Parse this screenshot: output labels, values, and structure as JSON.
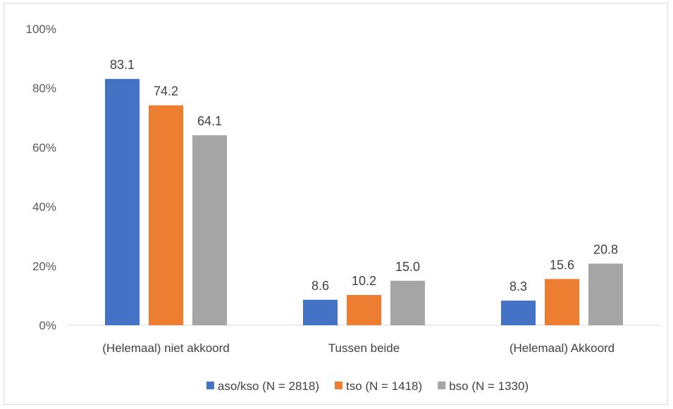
{
  "chart_data": {
    "type": "bar",
    "categories": [
      "(Helemaal) niet akkoord",
      "Tussen beide",
      "(Helemaal) Akkoord"
    ],
    "series": [
      {
        "name": "aso/kso (N = 2818)",
        "values": [
          83.1,
          8.6,
          8.3
        ],
        "color": "#4472c4"
      },
      {
        "name": "tso (N = 1418)",
        "values": [
          74.2,
          10.2,
          15.6
        ],
        "color": "#ed7d31"
      },
      {
        "name": "bso (N = 1330)",
        "values": [
          64.1,
          15.0,
          20.8
        ],
        "color": "#a5a5a5"
      }
    ],
    "ylim": [
      0,
      100
    ],
    "yticks": [
      0,
      20,
      40,
      60,
      80,
      100
    ],
    "ytick_labels": [
      "0%",
      "20%",
      "40%",
      "60%",
      "80%",
      "100%"
    ],
    "grid": false,
    "legend": "bottom"
  }
}
